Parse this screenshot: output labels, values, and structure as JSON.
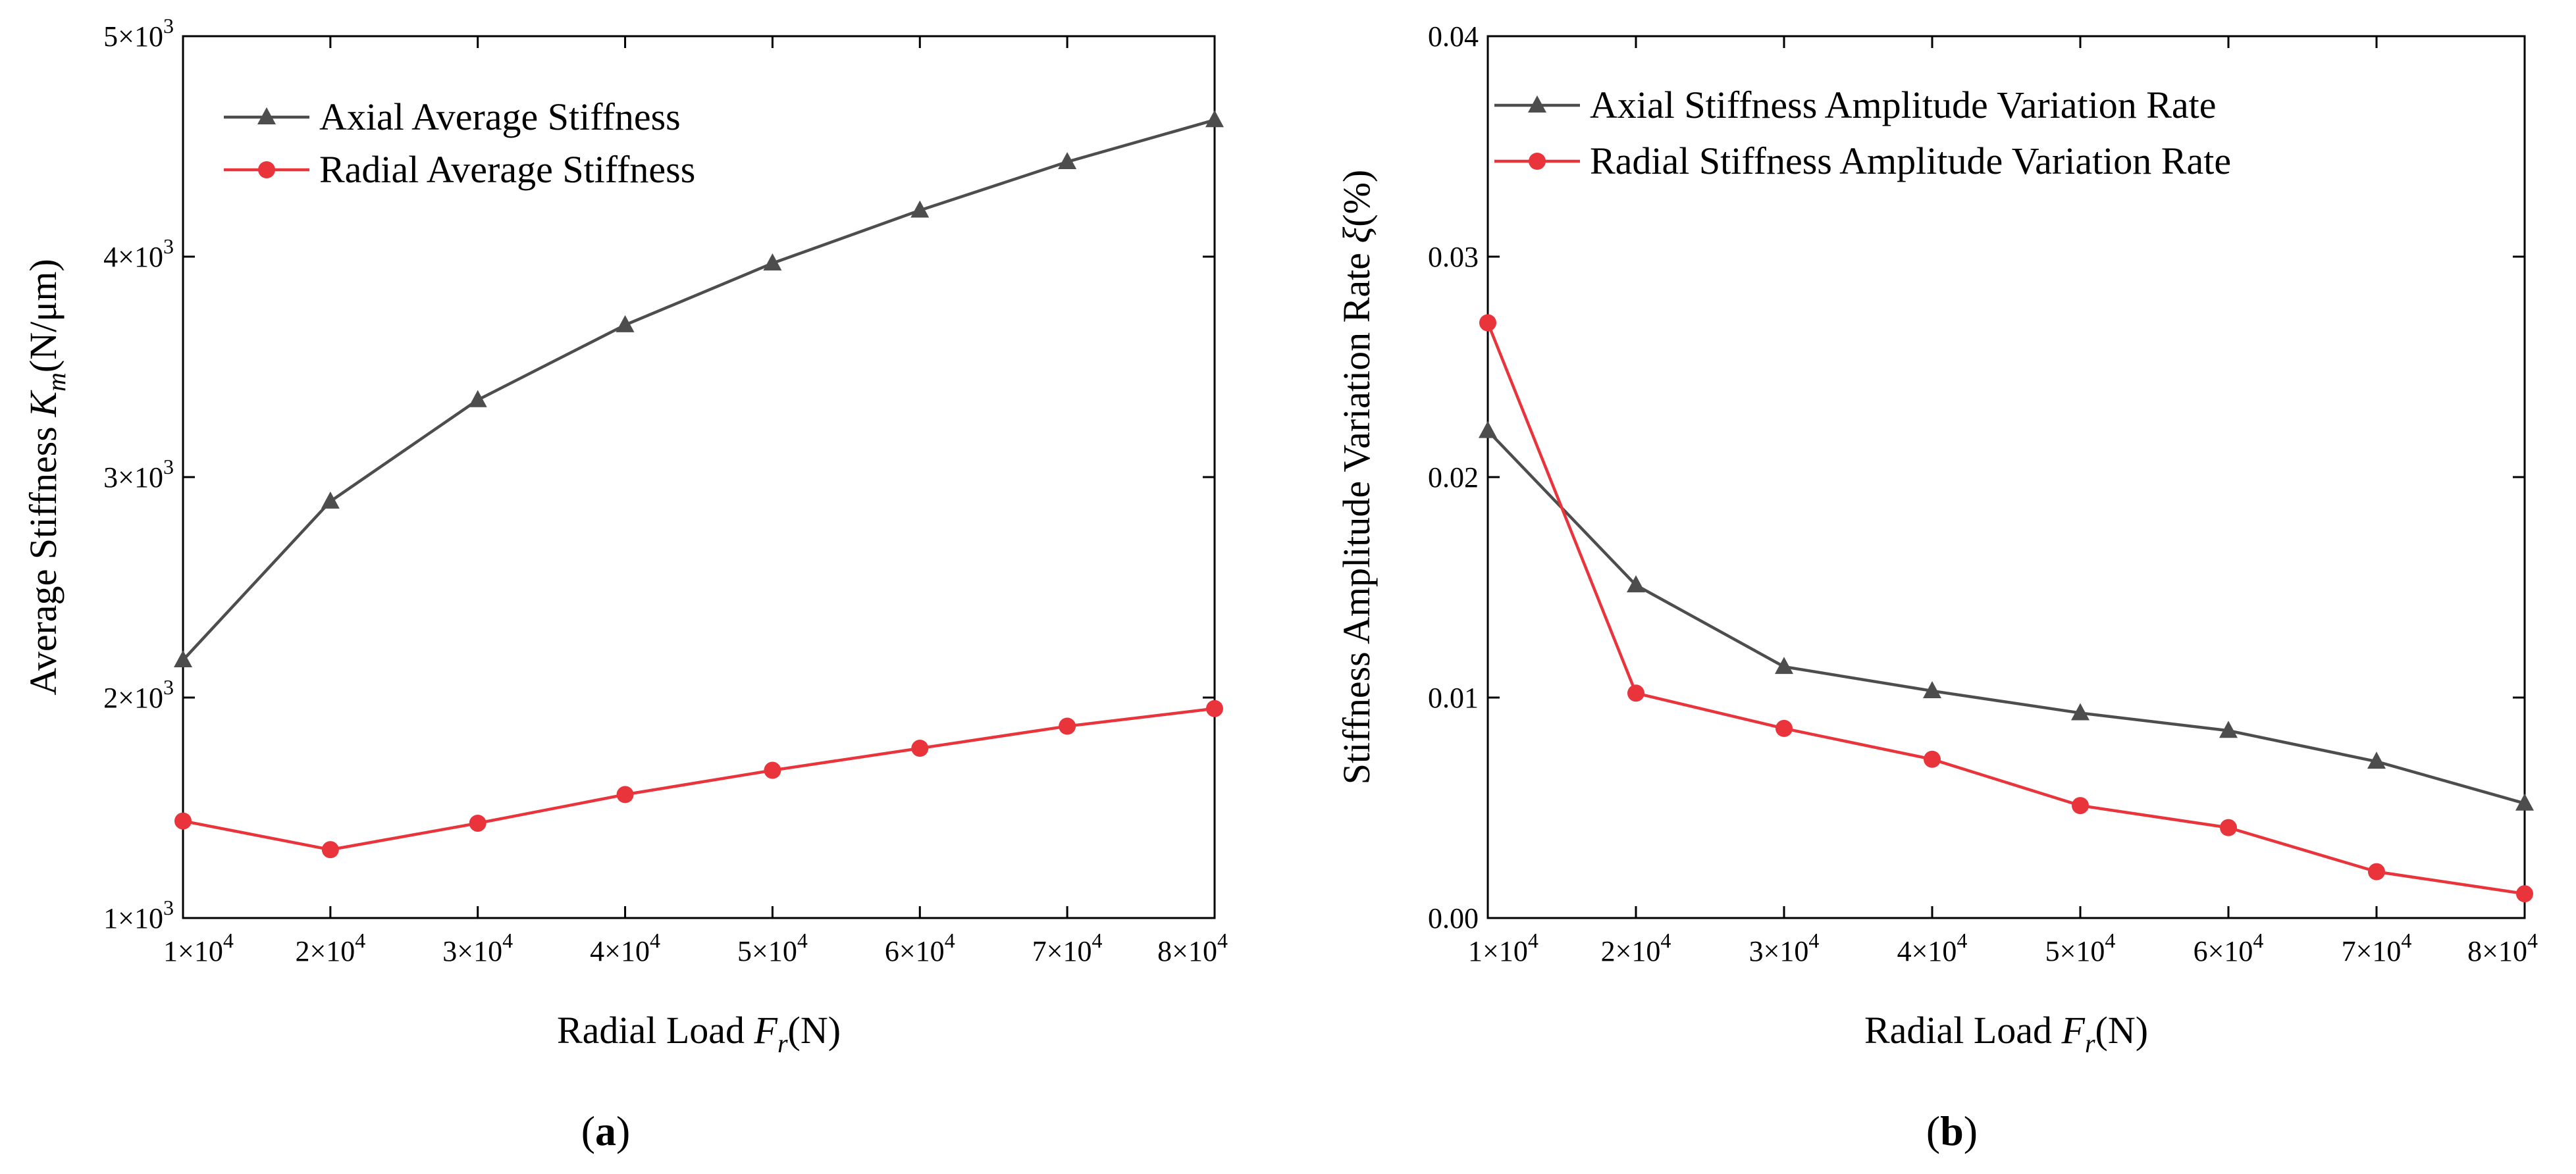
{
  "figure": {
    "panels": [
      "(a)",
      "(b)"
    ],
    "panel_letters": [
      "a",
      "b"
    ]
  },
  "chart_data": [
    {
      "type": "line",
      "panel": "a",
      "x": [
        10000,
        20000,
        30000,
        40000,
        50000,
        60000,
        70000,
        80000
      ],
      "x_tick_labels": [
        "1×10",
        "2×10",
        "3×10",
        "4×10",
        "5×10",
        "6×10",
        "7×10",
        "8×10"
      ],
      "x_tick_exponent": "4",
      "xlim": [
        10000,
        80000
      ],
      "xlabel": "Radial Load F",
      "xlabel_sub": "r",
      "xlabel_unit": "(N)",
      "ylim": [
        1000,
        5000
      ],
      "y_ticks": [
        1000,
        2000,
        3000,
        4000,
        5000
      ],
      "y_tick_labels": [
        "1×10",
        "2×10",
        "3×10",
        "4×10",
        "5×10"
      ],
      "y_tick_exponent": "3",
      "ylabel": "Average Stiffness K",
      "ylabel_sub": "m",
      "ylabel_unit": "(N/μm)",
      "legend_position": "top-left",
      "series": [
        {
          "name": "Axial Average Stiffness",
          "marker": "triangle",
          "color": "#4d4d4d",
          "values": [
            2170,
            2890,
            3350,
            3690,
            3970,
            4210,
            4430,
            4620
          ]
        },
        {
          "name": "Radial Average Stiffness",
          "marker": "circle",
          "color": "#e8343a",
          "values": [
            1440,
            1310,
            1430,
            1560,
            1670,
            1770,
            1870,
            1950
          ]
        }
      ]
    },
    {
      "type": "line",
      "panel": "b",
      "x": [
        10000,
        20000,
        30000,
        40000,
        50000,
        60000,
        70000,
        80000
      ],
      "x_tick_labels": [
        "1×10",
        "2×10",
        "3×10",
        "4×10",
        "5×10",
        "6×10",
        "7×10",
        "8×10"
      ],
      "x_tick_exponent": "4",
      "xlim": [
        10000,
        80000
      ],
      "xlabel": "Radial Load F",
      "xlabel_sub": "r",
      "xlabel_unit": "(N)",
      "ylim": [
        0,
        0.04
      ],
      "y_ticks": [
        0,
        0.01,
        0.02,
        0.03,
        0.04
      ],
      "y_tick_labels": [
        "0.00",
        "0.01",
        "0.02",
        "0.03",
        "0.04"
      ],
      "ylabel": "Stiffness Amplitude Variation Rate ",
      "ylabel_symbol": "ξ",
      "ylabel_unit": "(%)",
      "legend_position": "top-left",
      "series": [
        {
          "name": "Axial Stiffness Amplitude Variation Rate",
          "marker": "triangle",
          "color": "#4d4d4d",
          "values": [
            0.0221,
            0.0151,
            0.0114,
            0.0103,
            0.0093,
            0.0085,
            0.0071,
            0.0052
          ]
        },
        {
          "name": "Radial Stiffness Amplitude Variation Rate",
          "marker": "circle",
          "color": "#e8343a",
          "values": [
            0.027,
            0.0102,
            0.0086,
            0.0072,
            0.0051,
            0.0041,
            0.0021,
            0.0011
          ]
        }
      ]
    }
  ]
}
